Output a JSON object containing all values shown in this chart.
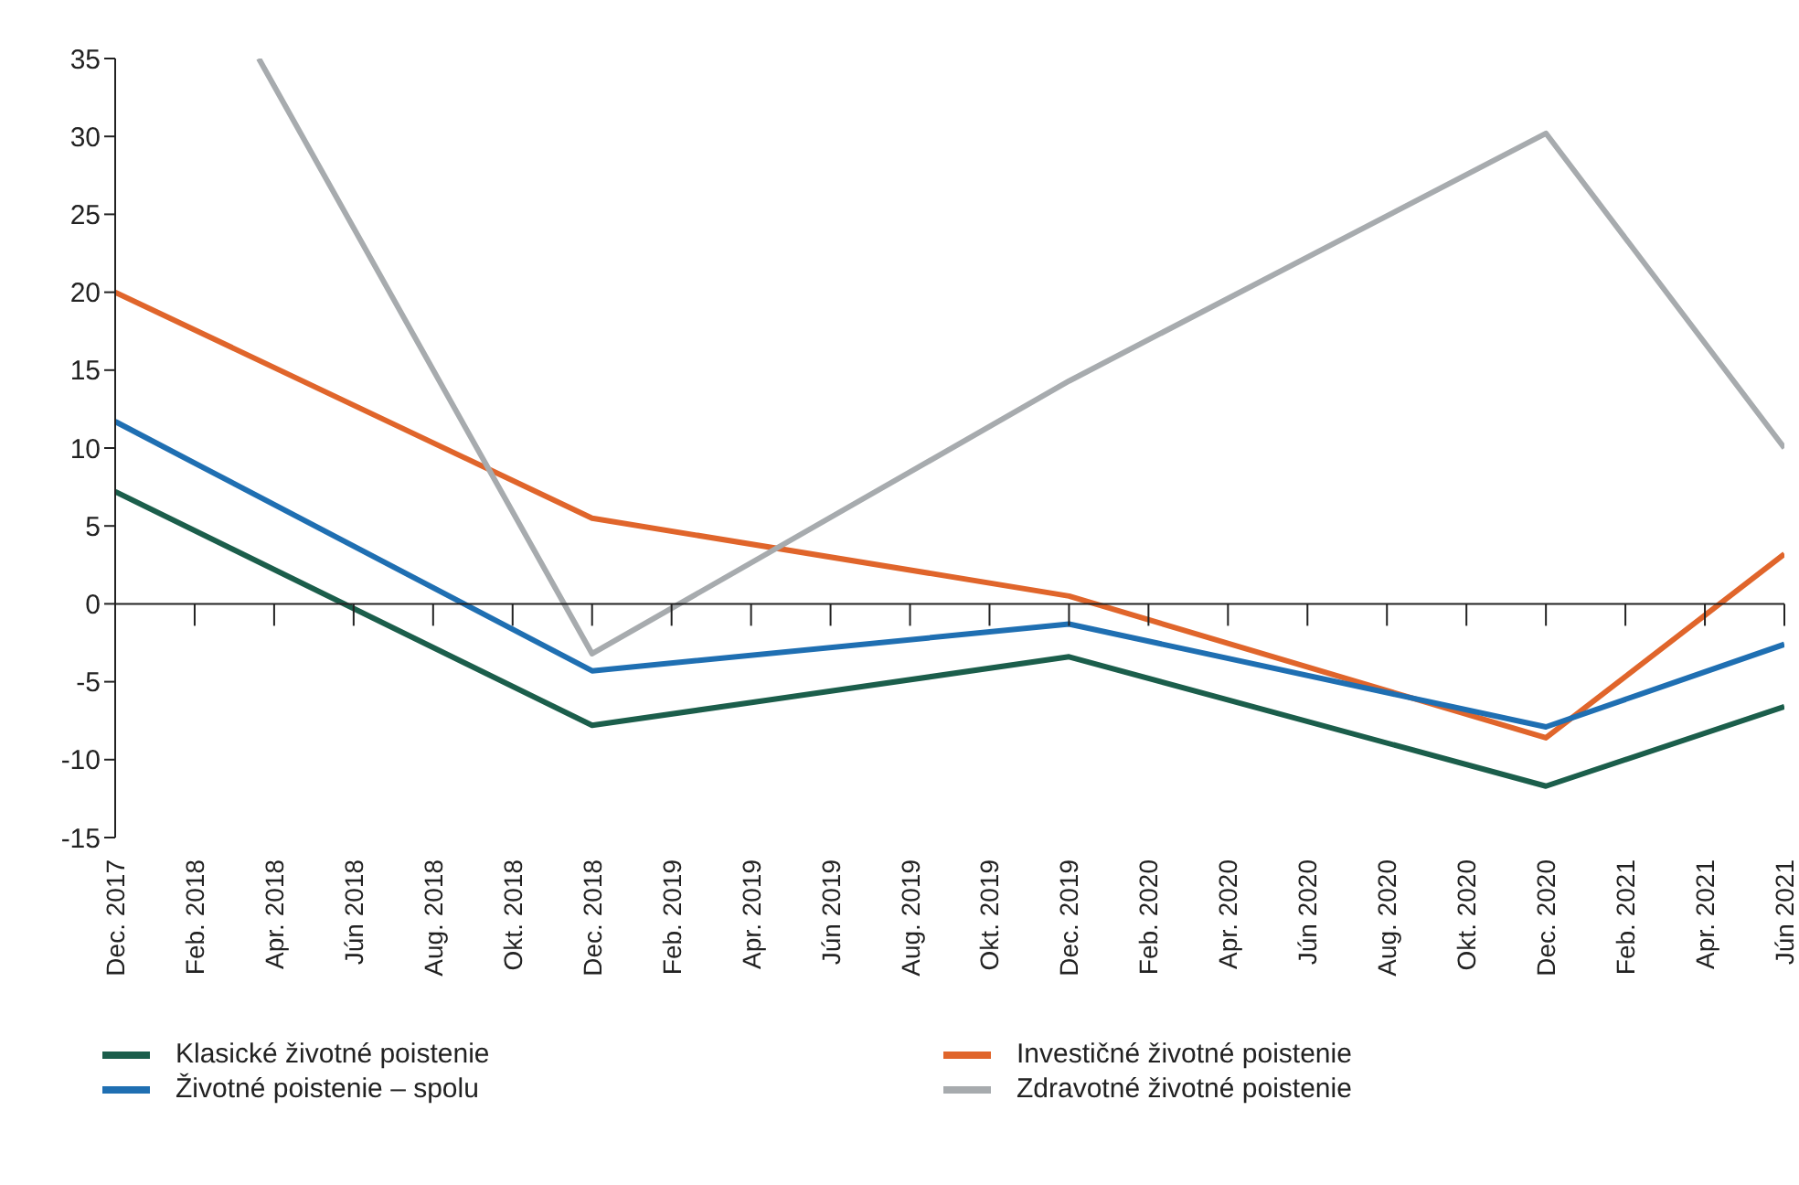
{
  "chart_data": {
    "type": "line",
    "x": [
      "2017-12",
      "2018-12",
      "2019-12",
      "2020-12",
      "2021-06"
    ],
    "xlim": [
      "2017-12",
      "2021-06"
    ],
    "xticks": [
      {
        "value": "2017-12",
        "label": "Dec. 2017"
      },
      {
        "value": "2018-02",
        "label": "Feb. 2018"
      },
      {
        "value": "2018-04",
        "label": "Apr. 2018"
      },
      {
        "value": "2018-06",
        "label": "Jún 2018"
      },
      {
        "value": "2018-08",
        "label": "Aug. 2018"
      },
      {
        "value": "2018-10",
        "label": "Okt. 2018"
      },
      {
        "value": "2018-12",
        "label": "Dec. 2018"
      },
      {
        "value": "2019-02",
        "label": "Feb. 2019"
      },
      {
        "value": "2019-04",
        "label": "Apr. 2019"
      },
      {
        "value": "2019-06",
        "label": "Jún 2019"
      },
      {
        "value": "2019-08",
        "label": "Aug. 2019"
      },
      {
        "value": "2019-10",
        "label": "Okt. 2019"
      },
      {
        "value": "2019-12",
        "label": "Dec. 2019"
      },
      {
        "value": "2020-02",
        "label": "Feb. 2020"
      },
      {
        "value": "2020-04",
        "label": "Apr. 2020"
      },
      {
        "value": "2020-06",
        "label": "Jún 2020"
      },
      {
        "value": "2020-08",
        "label": "Aug. 2020"
      },
      {
        "value": "2020-10",
        "label": "Okt. 2020"
      },
      {
        "value": "2020-12",
        "label": "Dec. 2020"
      },
      {
        "value": "2021-02",
        "label": "Feb. 2021"
      },
      {
        "value": "2021-04",
        "label": "Apr. 2021"
      },
      {
        "value": "2021-06",
        "label": "Jún 2021"
      }
    ],
    "series": [
      {
        "name": "Klasické životné poistenie",
        "color": "#1b5e4b",
        "values": [
          7.2,
          -7.8,
          -3.4,
          -11.7,
          -6.6
        ]
      },
      {
        "name": "Investičné životné poistenie",
        "color": "#e0652b",
        "values": [
          20.0,
          5.5,
          0.5,
          -8.6,
          3.2
        ]
      },
      {
        "name": "Životné poistenie – spolu",
        "color": "#1f6fb2",
        "values": [
          11.7,
          -4.3,
          -1.3,
          -7.9,
          -2.6
        ]
      },
      {
        "name": "Zdravotné životné poistenie",
        "color": "#a7abae",
        "x": [
          "2018-03-20",
          "2018-12",
          "2019-12",
          "2020-12",
          "2021-06"
        ],
        "values": [
          35,
          -3.2,
          14.3,
          30.2,
          10.0
        ]
      }
    ],
    "ylim": [
      -15,
      35
    ],
    "yticks": [
      -15,
      -10,
      -5,
      0,
      5,
      10,
      15,
      20,
      25,
      30,
      35
    ],
    "legend": "bottom",
    "marker": "none",
    "line_style": "solid"
  }
}
